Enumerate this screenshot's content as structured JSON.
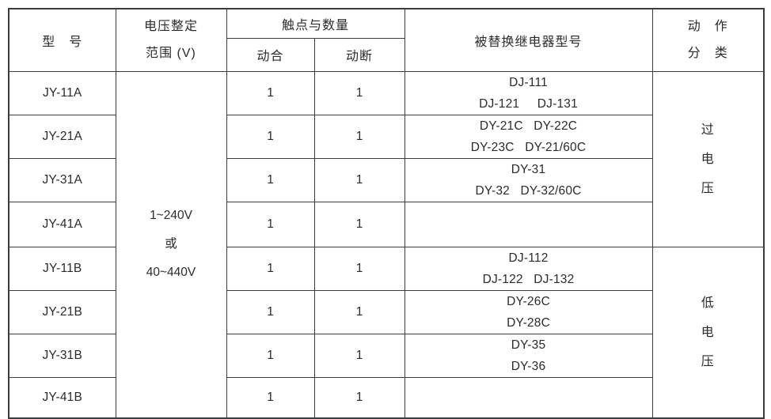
{
  "table": {
    "header": {
      "model": "型　号",
      "voltage_range": "电压整定\n范围 (V)",
      "contacts_group": "触点与数量",
      "normally_open": "动合",
      "normally_closed": "动断",
      "replaced_models": "被替换继电器型号",
      "action_class": "动　作\n分　类"
    },
    "voltage_range": "1~240V\n或\n40~440V",
    "rows": [
      {
        "model": "JY-11A",
        "no": "1",
        "nc": "1",
        "replaced": "DJ-111\nDJ-121     DJ-131"
      },
      {
        "model": "JY-21A",
        "no": "1",
        "nc": "1",
        "replaced": "DY-21C   DY-22C\nDY-23C   DY-21/60C"
      },
      {
        "model": "JY-31A",
        "no": "1",
        "nc": "1",
        "replaced": "DY-31\nDY-32   DY-32/60C"
      },
      {
        "model": "JY-41A",
        "no": "1",
        "nc": "1",
        "replaced": ""
      },
      {
        "model": "JY-11B",
        "no": "1",
        "nc": "1",
        "replaced": "DJ-112\nDJ-122   DJ-132"
      },
      {
        "model": "JY-21B",
        "no": "1",
        "nc": "1",
        "replaced": "DY-26C\nDY-28C"
      },
      {
        "model": "JY-31B",
        "no": "1",
        "nc": "1",
        "replaced": "DY-35\nDY-36"
      },
      {
        "model": "JY-41B",
        "no": "1",
        "nc": "1",
        "replaced": ""
      }
    ],
    "action_groups": [
      {
        "label": "过\n电\n压"
      },
      {
        "label": "低\n电\n压"
      }
    ]
  },
  "colors": {
    "border": "#3b3c40",
    "text": "#2b2b2b",
    "background": "#ffffff"
  }
}
